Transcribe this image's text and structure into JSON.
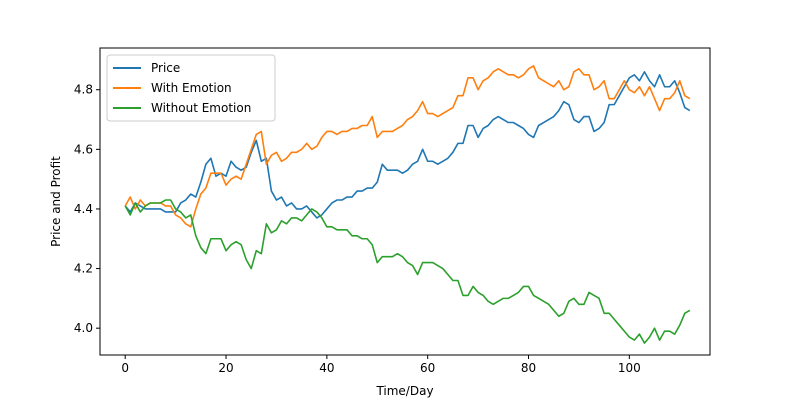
{
  "chart_data": {
    "type": "line",
    "xlabel": "Time/Day",
    "ylabel": "Price and Profit",
    "xlim": [
      -5,
      116
    ],
    "ylim": [
      3.91,
      4.94
    ],
    "xticks": [
      0,
      20,
      40,
      60,
      80,
      100
    ],
    "yticks": [
      4.0,
      4.2,
      4.4,
      4.6,
      4.8
    ],
    "ytick_labels": [
      "4.0",
      "4.2",
      "4.4",
      "4.6",
      "4.8"
    ],
    "grid": false,
    "legend_position": "top-left",
    "series": [
      {
        "name": "Price",
        "color": "#1f77b4",
        "values": [
          4.41,
          4.39,
          4.42,
          4.41,
          4.4,
          4.4,
          4.4,
          4.4,
          4.39,
          4.39,
          4.39,
          4.42,
          4.43,
          4.45,
          4.44,
          4.49,
          4.55,
          4.57,
          4.51,
          4.52,
          4.51,
          4.56,
          4.54,
          4.53,
          4.54,
          4.59,
          4.63,
          4.56,
          4.57,
          4.46,
          4.43,
          4.44,
          4.41,
          4.42,
          4.4,
          4.4,
          4.41,
          4.39,
          4.37,
          4.38,
          4.4,
          4.42,
          4.43,
          4.43,
          4.44,
          4.44,
          4.46,
          4.46,
          4.47,
          4.47,
          4.49,
          4.55,
          4.53,
          4.53,
          4.53,
          4.52,
          4.53,
          4.55,
          4.56,
          4.6,
          4.56,
          4.56,
          4.55,
          4.56,
          4.57,
          4.59,
          4.62,
          4.62,
          4.68,
          4.68,
          4.64,
          4.67,
          4.68,
          4.7,
          4.71,
          4.7,
          4.69,
          4.69,
          4.68,
          4.67,
          4.65,
          4.64,
          4.68,
          4.69,
          4.7,
          4.71,
          4.73,
          4.76,
          4.75,
          4.7,
          4.69,
          4.71,
          4.71,
          4.66,
          4.67,
          4.69,
          4.75,
          4.75,
          4.78,
          4.81,
          4.84,
          4.85,
          4.83,
          4.86,
          4.83,
          4.81,
          4.85,
          4.81,
          4.81,
          4.83,
          4.79,
          4.74,
          4.73
        ]
      },
      {
        "name": "With Emotion",
        "color": "#ff7f0e",
        "values": [
          4.41,
          4.44,
          4.4,
          4.43,
          4.41,
          4.42,
          4.42,
          4.42,
          4.41,
          4.41,
          4.38,
          4.37,
          4.35,
          4.34,
          4.4,
          4.45,
          4.47,
          4.52,
          4.52,
          4.52,
          4.48,
          4.5,
          4.51,
          4.5,
          4.55,
          4.6,
          4.65,
          4.66,
          4.55,
          4.58,
          4.59,
          4.56,
          4.57,
          4.59,
          4.59,
          4.6,
          4.62,
          4.6,
          4.61,
          4.64,
          4.66,
          4.66,
          4.65,
          4.66,
          4.66,
          4.67,
          4.67,
          4.68,
          4.68,
          4.71,
          4.64,
          4.66,
          4.66,
          4.66,
          4.67,
          4.68,
          4.7,
          4.71,
          4.73,
          4.76,
          4.72,
          4.72,
          4.71,
          4.72,
          4.73,
          4.74,
          4.78,
          4.78,
          4.84,
          4.84,
          4.8,
          4.83,
          4.84,
          4.86,
          4.87,
          4.86,
          4.85,
          4.85,
          4.84,
          4.85,
          4.87,
          4.88,
          4.84,
          4.83,
          4.82,
          4.81,
          4.83,
          4.8,
          4.81,
          4.86,
          4.87,
          4.85,
          4.85,
          4.8,
          4.81,
          4.83,
          4.77,
          4.77,
          4.8,
          4.83,
          4.8,
          4.79,
          4.81,
          4.78,
          4.81,
          4.77,
          4.73,
          4.77,
          4.77,
          4.79,
          4.83,
          4.78,
          4.77
        ]
      },
      {
        "name": "Without Emotion",
        "color": "#2ca02c",
        "values": [
          4.41,
          4.38,
          4.42,
          4.39,
          4.41,
          4.42,
          4.42,
          4.42,
          4.43,
          4.43,
          4.4,
          4.39,
          4.37,
          4.38,
          4.31,
          4.27,
          4.25,
          4.3,
          4.3,
          4.3,
          4.26,
          4.28,
          4.29,
          4.28,
          4.23,
          4.2,
          4.26,
          4.25,
          4.35,
          4.32,
          4.33,
          4.36,
          4.35,
          4.37,
          4.37,
          4.36,
          4.38,
          4.4,
          4.39,
          4.37,
          4.34,
          4.34,
          4.33,
          4.33,
          4.33,
          4.31,
          4.31,
          4.3,
          4.3,
          4.28,
          4.22,
          4.24,
          4.24,
          4.24,
          4.25,
          4.24,
          4.22,
          4.21,
          4.18,
          4.22,
          4.22,
          4.22,
          4.21,
          4.2,
          4.18,
          4.16,
          4.16,
          4.11,
          4.11,
          4.14,
          4.12,
          4.11,
          4.09,
          4.08,
          4.09,
          4.1,
          4.1,
          4.11,
          4.12,
          4.14,
          4.14,
          4.11,
          4.1,
          4.09,
          4.08,
          4.06,
          4.04,
          4.05,
          4.09,
          4.1,
          4.08,
          4.08,
          4.12,
          4.11,
          4.1,
          4.05,
          4.05,
          4.03,
          4.01,
          3.99,
          3.97,
          3.96,
          3.98,
          3.95,
          3.97,
          4.0,
          3.96,
          3.99,
          3.99,
          3.98,
          4.01,
          4.05,
          4.06
        ]
      }
    ]
  }
}
